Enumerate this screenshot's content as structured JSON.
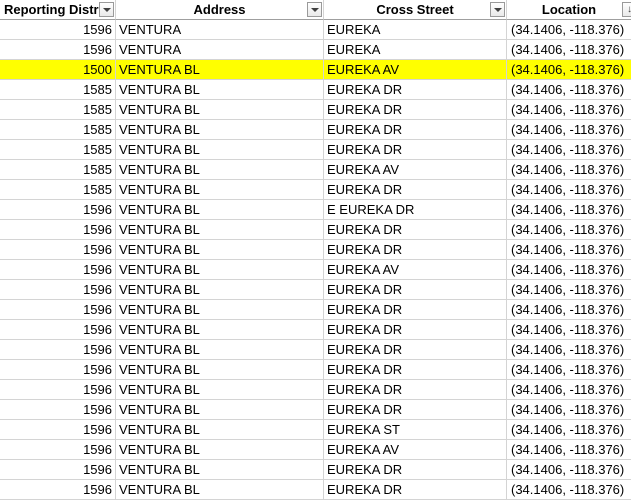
{
  "columns": [
    {
      "label": "Reporting Distr",
      "filter_icon": "filter-dropdown-icon"
    },
    {
      "label": "Address",
      "filter_icon": "filter-dropdown-icon"
    },
    {
      "label": "Cross Street",
      "filter_icon": "filter-dropdown-icon"
    },
    {
      "label": "Location",
      "filter_icon": "sort-filter-icon"
    }
  ],
  "highlight_color": "#ffff00",
  "highlighted_row_index": 2,
  "rows": [
    {
      "district": "1596",
      "address": "VENTURA",
      "cross_street": "EUREKA",
      "location": "(34.1406, -118.376)"
    },
    {
      "district": "1596",
      "address": "VENTURA",
      "cross_street": "EUREKA",
      "location": "(34.1406, -118.376)"
    },
    {
      "district": "1500",
      "address": "VENTURA BL",
      "cross_street": "EUREKA AV",
      "location": "(34.1406, -118.376)"
    },
    {
      "district": "1585",
      "address": "VENTURA BL",
      "cross_street": "EUREKA DR",
      "location": "(34.1406, -118.376)"
    },
    {
      "district": "1585",
      "address": "VENTURA BL",
      "cross_street": "EUREKA DR",
      "location": "(34.1406, -118.376)"
    },
    {
      "district": "1585",
      "address": "VENTURA BL",
      "cross_street": "EUREKA DR",
      "location": "(34.1406, -118.376)"
    },
    {
      "district": "1585",
      "address": "VENTURA BL",
      "cross_street": "EUREKA DR",
      "location": "(34.1406, -118.376)"
    },
    {
      "district": "1585",
      "address": "VENTURA BL",
      "cross_street": "EUREKA AV",
      "location": "(34.1406, -118.376)"
    },
    {
      "district": "1585",
      "address": "VENTURA BL",
      "cross_street": "EUREKA DR",
      "location": "(34.1406, -118.376)"
    },
    {
      "district": "1596",
      "address": "VENTURA BL",
      "cross_street": "E EUREKA DR",
      "location": "(34.1406, -118.376)"
    },
    {
      "district": "1596",
      "address": "VENTURA BL",
      "cross_street": "EUREKA DR",
      "location": "(34.1406, -118.376)"
    },
    {
      "district": "1596",
      "address": "VENTURA BL",
      "cross_street": "EUREKA DR",
      "location": "(34.1406, -118.376)"
    },
    {
      "district": "1596",
      "address": "VENTURA BL",
      "cross_street": "EUREKA AV",
      "location": "(34.1406, -118.376)"
    },
    {
      "district": "1596",
      "address": "VENTURA BL",
      "cross_street": "EUREKA DR",
      "location": "(34.1406, -118.376)"
    },
    {
      "district": "1596",
      "address": "VENTURA BL",
      "cross_street": "EUREKA DR",
      "location": "(34.1406, -118.376)"
    },
    {
      "district": "1596",
      "address": "VENTURA BL",
      "cross_street": "EUREKA DR",
      "location": "(34.1406, -118.376)"
    },
    {
      "district": "1596",
      "address": "VENTURA BL",
      "cross_street": "EUREKA DR",
      "location": "(34.1406, -118.376)"
    },
    {
      "district": "1596",
      "address": "VENTURA BL",
      "cross_street": "EUREKA DR",
      "location": "(34.1406, -118.376)"
    },
    {
      "district": "1596",
      "address": "VENTURA BL",
      "cross_street": "EUREKA DR",
      "location": "(34.1406, -118.376)"
    },
    {
      "district": "1596",
      "address": "VENTURA BL",
      "cross_street": "EUREKA DR",
      "location": "(34.1406, -118.376)"
    },
    {
      "district": "1596",
      "address": "VENTURA BL",
      "cross_street": "EUREKA ST",
      "location": "(34.1406, -118.376)"
    },
    {
      "district": "1596",
      "address": "VENTURA BL",
      "cross_street": "EUREKA AV",
      "location": "(34.1406, -118.376)"
    },
    {
      "district": "1596",
      "address": "VENTURA BL",
      "cross_street": "EUREKA DR",
      "location": "(34.1406, -118.376)"
    },
    {
      "district": "1596",
      "address": "VENTURA BL",
      "cross_street": "EUREKA DR",
      "location": "(34.1406, -118.376)"
    }
  ]
}
